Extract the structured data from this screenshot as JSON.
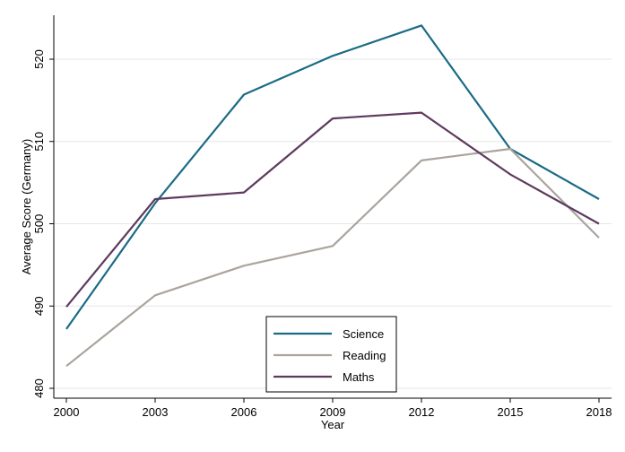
{
  "chart_data": {
    "type": "line",
    "title": "",
    "xlabel": "Year",
    "ylabel": "Average Score (Germany)",
    "x": [
      2000,
      2003,
      2006,
      2009,
      2012,
      2015,
      2018
    ],
    "x_tick_labels": [
      "2000",
      "2003",
      "2006",
      "2009",
      "2012",
      "2015",
      "2018"
    ],
    "y_ticks": [
      480,
      490,
      500,
      510,
      520
    ],
    "y_tick_labels": [
      "480",
      "490",
      "500",
      "510",
      "520"
    ],
    "xlim": [
      2000,
      2018
    ],
    "ylim": [
      480,
      524.5
    ],
    "grid": "horizontal",
    "legend_position": "bottom-center",
    "series": [
      {
        "name": "Science",
        "color": "#1a6b84",
        "values": [
          487.2,
          502.5,
          515.7,
          520.4,
          524.1,
          509.1,
          503.0
        ]
      },
      {
        "name": "Reading",
        "color": "#aaa49d",
        "values": [
          482.7,
          491.3,
          494.9,
          497.3,
          507.7,
          509.1,
          498.3
        ]
      },
      {
        "name": "Maths",
        "color": "#5e3a5e",
        "values": [
          489.9,
          503.0,
          503.8,
          512.8,
          513.5,
          506.0,
          500.0
        ]
      }
    ]
  }
}
